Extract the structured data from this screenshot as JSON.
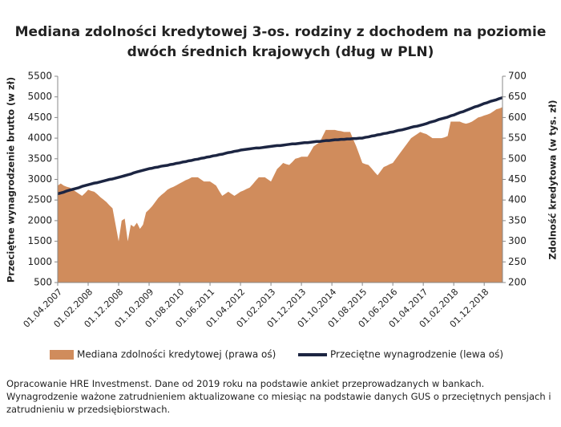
{
  "chart_data": {
    "type": "area-line",
    "title": [
      "Mediana zdolności kredytowej 3-os. rodziny z dochodem na poziomie",
      "dwóch średnich krajowych (dług w PLN)"
    ],
    "y_label": "Przeciętne wynagrodzenie brutto (w zł)",
    "y2_label": "Zdolność kredytowa (w tys. zł)",
    "note": "Opracowanie HRE Investmenst. Dane od 2019 roku na podstawie ankiet przeprowadzanych w bankach. Wynagrodzenie ważone zatrudnieniem aktualizowane co miesiąc na podstawie danych GUS o przeciętnych pensjach i zatrudnieniu w przedsiębiorstwach.",
    "categories": [
      "01.04.2007",
      null,
      null,
      null,
      null,
      null,
      null,
      null,
      null,
      null,
      "01.02.2008",
      null,
      null,
      null,
      null,
      null,
      null,
      null,
      null,
      null,
      "01.12.2008",
      null,
      null,
      null,
      null,
      null,
      null,
      null,
      null,
      null,
      "01.10.2009",
      null,
      null,
      null,
      null,
      null,
      null,
      null,
      null,
      null,
      "01.08.2010",
      null,
      null,
      null,
      null,
      null,
      null,
      null,
      null,
      null,
      "01.06.2011",
      null,
      null,
      null,
      null,
      null,
      null,
      null,
      null,
      null,
      "01.04.2012",
      null,
      null,
      null,
      null,
      null,
      null,
      null,
      null,
      null,
      "01.02.2013",
      null,
      null,
      null,
      null,
      null,
      null,
      null,
      null,
      null,
      "01.12.2013",
      null,
      null,
      null,
      null,
      null,
      null,
      null,
      null,
      null,
      "01.10.2014",
      null,
      null,
      null,
      null,
      null,
      null,
      null,
      null,
      null,
      "01.08.2015",
      null,
      null,
      null,
      null,
      null,
      null,
      null,
      null,
      null,
      "01.06.2016",
      null,
      null,
      null,
      null,
      null,
      null,
      null,
      null,
      null,
      "01.04.2017",
      null,
      null,
      null,
      null,
      null,
      null,
      null,
      null,
      null,
      "01.02.2018",
      null,
      null,
      null,
      null,
      null,
      null,
      null,
      null,
      null,
      "01.12.2018",
      null,
      null,
      null,
      null,
      null,
      null
    ],
    "series": [
      {
        "name": "Mediana zdolności kredytowej (prawa oś)",
        "color": "#d08c5c",
        "kind": "area",
        "axis": "y2",
        "values": [
          435,
          440,
          435,
          432,
          430,
          425,
          420,
          415,
          410,
          417,
          425,
          422,
          420,
          414,
          407,
          401,
          395,
          387,
          380,
          340,
          300,
          350,
          355,
          300,
          340,
          335,
          345,
          330,
          340,
          370,
          377,
          385,
          395,
          405,
          412,
          418,
          425,
          429,
          432,
          436,
          440,
          444,
          448,
          451,
          455,
          455,
          455,
          450,
          445,
          445,
          445,
          440,
          435,
          422,
          410,
          415,
          420,
          415,
          410,
          415,
          420,
          423,
          427,
          430,
          438,
          447,
          455,
          455,
          455,
          450,
          445,
          460,
          475,
          482,
          490,
          487,
          485,
          492,
          500,
          502,
          505,
          505,
          505,
          517,
          530,
          535,
          540,
          555,
          570,
          570,
          570,
          570,
          568,
          567,
          565,
          565,
          565,
          547,
          530,
          510,
          490,
          487,
          485,
          477,
          468,
          460,
          470,
          480,
          483,
          487,
          490,
          500,
          510,
          520,
          530,
          540,
          550,
          555,
          560,
          565,
          562,
          560,
          555,
          550,
          550,
          550,
          550,
          552,
          555,
          590,
          590,
          590,
          590,
          587,
          585,
          587,
          590,
          595,
          600,
          602,
          605,
          607,
          610,
          615,
          620,
          622,
          625
        ]
      },
      {
        "name": "Przeciętne wynagrodzenie (lewa oś)",
        "color": "#1c2542",
        "kind": "line",
        "values": [
          2650,
          2670,
          2690,
          2720,
          2740,
          2760,
          2780,
          2800,
          2830,
          2850,
          2870,
          2890,
          2910,
          2920,
          2940,
          2960,
          2980,
          3000,
          3010,
          3030,
          3050,
          3070,
          3090,
          3110,
          3130,
          3160,
          3180,
          3200,
          3220,
          3240,
          3260,
          3270,
          3290,
          3300,
          3320,
          3330,
          3340,
          3360,
          3370,
          3390,
          3400,
          3420,
          3430,
          3450,
          3460,
          3480,
          3490,
          3510,
          3520,
          3540,
          3550,
          3570,
          3580,
          3600,
          3610,
          3630,
          3650,
          3660,
          3680,
          3690,
          3710,
          3720,
          3730,
          3740,
          3750,
          3760,
          3760,
          3770,
          3780,
          3790,
          3800,
          3810,
          3820,
          3820,
          3830,
          3840,
          3850,
          3860,
          3860,
          3870,
          3880,
          3890,
          3890,
          3900,
          3910,
          3920,
          3920,
          3930,
          3940,
          3940,
          3950,
          3960,
          3960,
          3970,
          3970,
          3980,
          3980,
          3990,
          3990,
          4000,
          4000,
          4020,
          4030,
          4050,
          4060,
          4080,
          4090,
          4110,
          4120,
          4140,
          4150,
          4170,
          4190,
          4200,
          4220,
          4240,
          4260,
          4280,
          4290,
          4310,
          4330,
          4350,
          4380,
          4400,
          4420,
          4450,
          4470,
          4490,
          4510,
          4540,
          4560,
          4590,
          4620,
          4640,
          4670,
          4700,
          4730,
          4760,
          4780,
          4810,
          4840,
          4860,
          4890,
          4910,
          4930,
          4960,
          4980
        ]
      }
    ],
    "ylim": [
      500,
      5500
    ],
    "yticks": [
      500,
      1000,
      1500,
      2000,
      2500,
      3000,
      3500,
      4000,
      4500,
      5000,
      5500
    ],
    "y2lim": [
      200,
      700
    ],
    "y2ticks": [
      200,
      250,
      300,
      350,
      400,
      450,
      500,
      550,
      600,
      650,
      700
    ],
    "legend": "bottom"
  }
}
